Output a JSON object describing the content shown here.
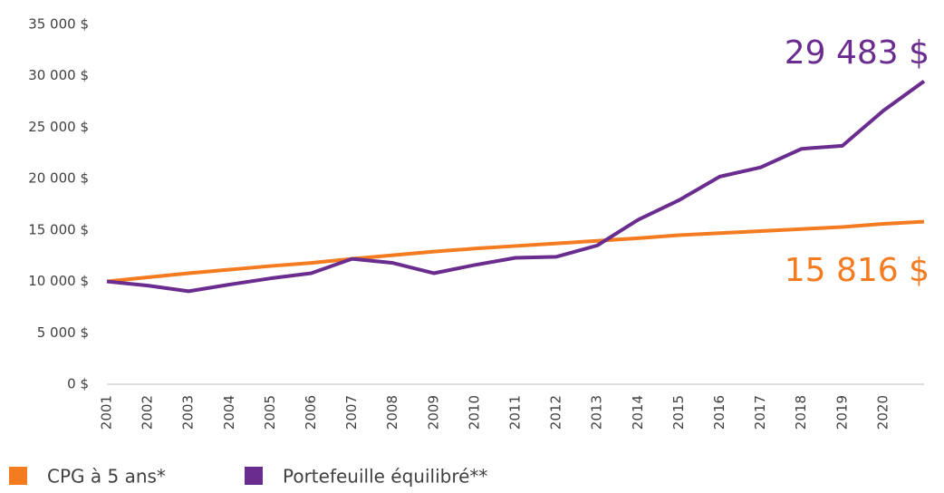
{
  "chart_data": {
    "type": "line",
    "categories": [
      "2001",
      "2002",
      "2003",
      "2004",
      "2005",
      "2006",
      "2007",
      "2008",
      "2009",
      "2010",
      "2011",
      "2012",
      "2013",
      "2014",
      "2015",
      "2016",
      "2017",
      "2018",
      "2019",
      "2020",
      null
    ],
    "series": [
      {
        "name": "CPG à 5 ans*",
        "color": "#f47b20",
        "end_label": "15 816 $",
        "values": [
          10000,
          10400,
          10800,
          11150,
          11500,
          11800,
          12200,
          12550,
          12900,
          13200,
          13450,
          13700,
          13950,
          14200,
          14500,
          14700,
          14900,
          15100,
          15300,
          15600,
          15816
        ]
      },
      {
        "name": "Portefeuille équilibré**",
        "color": "#6a2c8e",
        "end_label": "29 483 $",
        "values": [
          10000,
          9600,
          9050,
          9700,
          10300,
          10800,
          12200,
          11800,
          10800,
          11600,
          12300,
          12400,
          13500,
          16000,
          17900,
          20200,
          21100,
          22900,
          23200,
          26600,
          29483
        ]
      }
    ],
    "ylim": [
      0,
      35000
    ],
    "yticks": [
      {
        "value": 0,
        "label": "0 $"
      },
      {
        "value": 5000,
        "label": "5 000 $"
      },
      {
        "value": 10000,
        "label": "10 000 $"
      },
      {
        "value": 15000,
        "label": "15 000 $"
      },
      {
        "value": 20000,
        "label": "20 000 $"
      },
      {
        "value": 25000,
        "label": "25 000 $"
      },
      {
        "value": 30000,
        "label": "30 000 $"
      },
      {
        "value": 35000,
        "label": "35 000 $"
      }
    ],
    "grid": false,
    "legend": "bottom-left"
  }
}
